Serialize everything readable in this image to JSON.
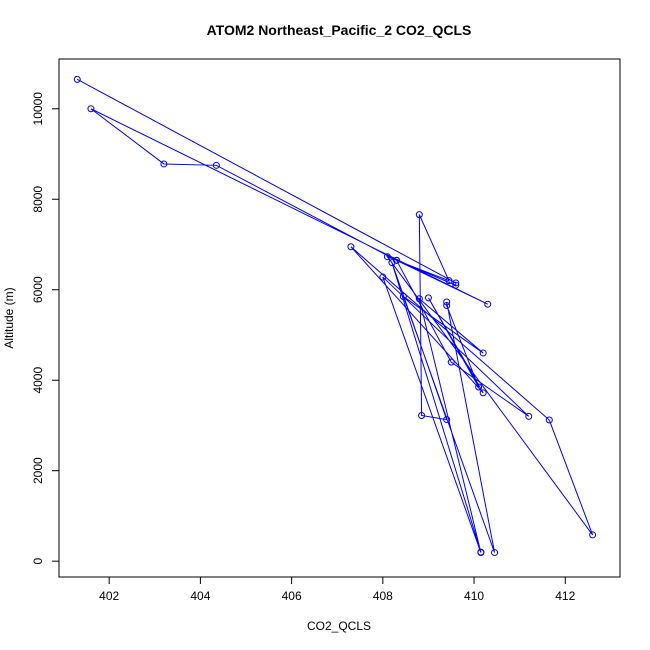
{
  "chart_data": {
    "type": "line",
    "title": "ATOM2 Northeast_Pacific_2 CO2_QCLS",
    "xlabel": "CO2_QCLS",
    "ylabel": "Altitude (m)",
    "xlim": [
      400.9,
      413.2
    ],
    "ylim": [
      -350,
      11100
    ],
    "x_ticks": [
      402,
      404,
      406,
      408,
      410,
      412
    ],
    "y_ticks": [
      0,
      2000,
      4000,
      6000,
      8000,
      10000
    ],
    "line_color": "#0000ff",
    "marker": "open-circle",
    "grid": false,
    "series": [
      {
        "points": [
          {
            "x": 401.3,
            "y": 10650
          },
          {
            "x": 409.6,
            "y": 6150
          },
          {
            "x": 409.6,
            "y": 6100
          },
          {
            "x": 408.3,
            "y": 6650
          },
          {
            "x": 410.3,
            "y": 5680
          },
          {
            "x": 401.6,
            "y": 10000
          },
          {
            "x": 403.2,
            "y": 8780
          },
          {
            "x": 404.35,
            "y": 8750
          },
          {
            "x": 408.3,
            "y": 6650
          },
          {
            "x": 409.5,
            "y": 4400
          },
          {
            "x": 411.2,
            "y": 3200
          },
          {
            "x": 408.0,
            "y": 6280
          },
          {
            "x": 410.15,
            "y": 190
          },
          {
            "x": 408.8,
            "y": 5800
          },
          {
            "x": 410.2,
            "y": 4600
          },
          {
            "x": 408.45,
            "y": 5850
          },
          {
            "x": 410.45,
            "y": 190
          },
          {
            "x": 409.4,
            "y": 5730
          },
          {
            "x": 409.4,
            "y": 5650
          },
          {
            "x": 410.1,
            "y": 3850
          },
          {
            "x": 409.0,
            "y": 5820
          },
          {
            "x": 410.2,
            "y": 3720
          },
          {
            "x": 407.3,
            "y": 6950
          },
          {
            "x": 411.65,
            "y": 3120
          },
          {
            "x": 412.6,
            "y": 580
          },
          {
            "x": 408.1,
            "y": 6730
          },
          {
            "x": 409.45,
            "y": 6200
          },
          {
            "x": 408.8,
            "y": 7660
          },
          {
            "x": 408.85,
            "y": 3220
          },
          {
            "x": 409.4,
            "y": 3130
          },
          {
            "x": 408.2,
            "y": 6600
          },
          {
            "x": 410.15,
            "y": 200
          }
        ]
      }
    ]
  }
}
